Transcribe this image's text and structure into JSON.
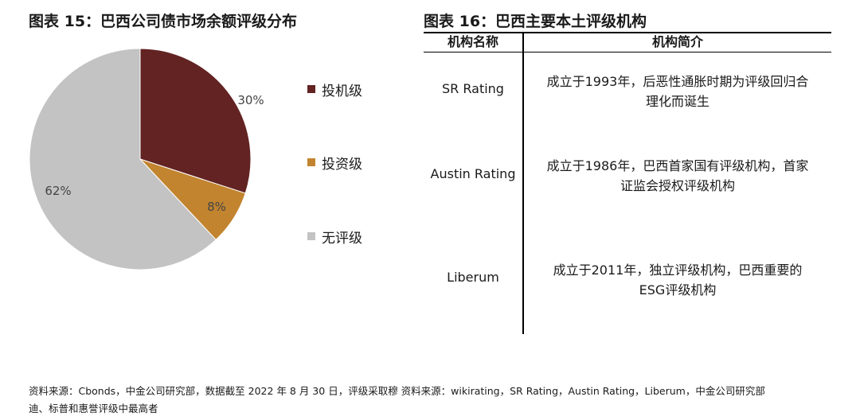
{
  "left_title": "图表 15：巴西公司债市场余额评级分布",
  "right_title": "图表 16：巴西主要本土评级机构",
  "chart_data": {
    "type": "pie",
    "slices": [
      {
        "label": "投机级",
        "value": 30,
        "display": "30%",
        "color": "#632323"
      },
      {
        "label": "投资级",
        "value": 8,
        "display": "8%",
        "color": "#c2842f"
      },
      {
        "label": "无评级",
        "value": 62,
        "display": "62%",
        "color": "#c3c3c3"
      }
    ],
    "legend_position": "right"
  },
  "table": {
    "headers": [
      "机构名称",
      "机构简介"
    ],
    "rows": [
      {
        "name": "SR Rating",
        "desc_lines": [
          "成立于1993年，后恶性通胀时期为评级回归合",
          "理化而诞生"
        ]
      },
      {
        "name": "Austin Rating",
        "desc_lines": [
          "成立于1986年，巴西首家国有评级机构，首家",
          "证监会授权评级机构"
        ]
      },
      {
        "name": "Liberum",
        "desc_lines": [
          "成立于2011年，独立评级机构，巴西重要的",
          "ESG评级机构"
        ]
      }
    ]
  },
  "source": {
    "line1": "资料来源：Cbonds，中金公司研究部，数据截至 2022 年 8 月 30 日，评级采取穆 资料来源：wikirating，SR Rating，Austin Rating，Liberum，中金公司研究部",
    "line2": "迪、标普和惠誉评级中最高者"
  }
}
